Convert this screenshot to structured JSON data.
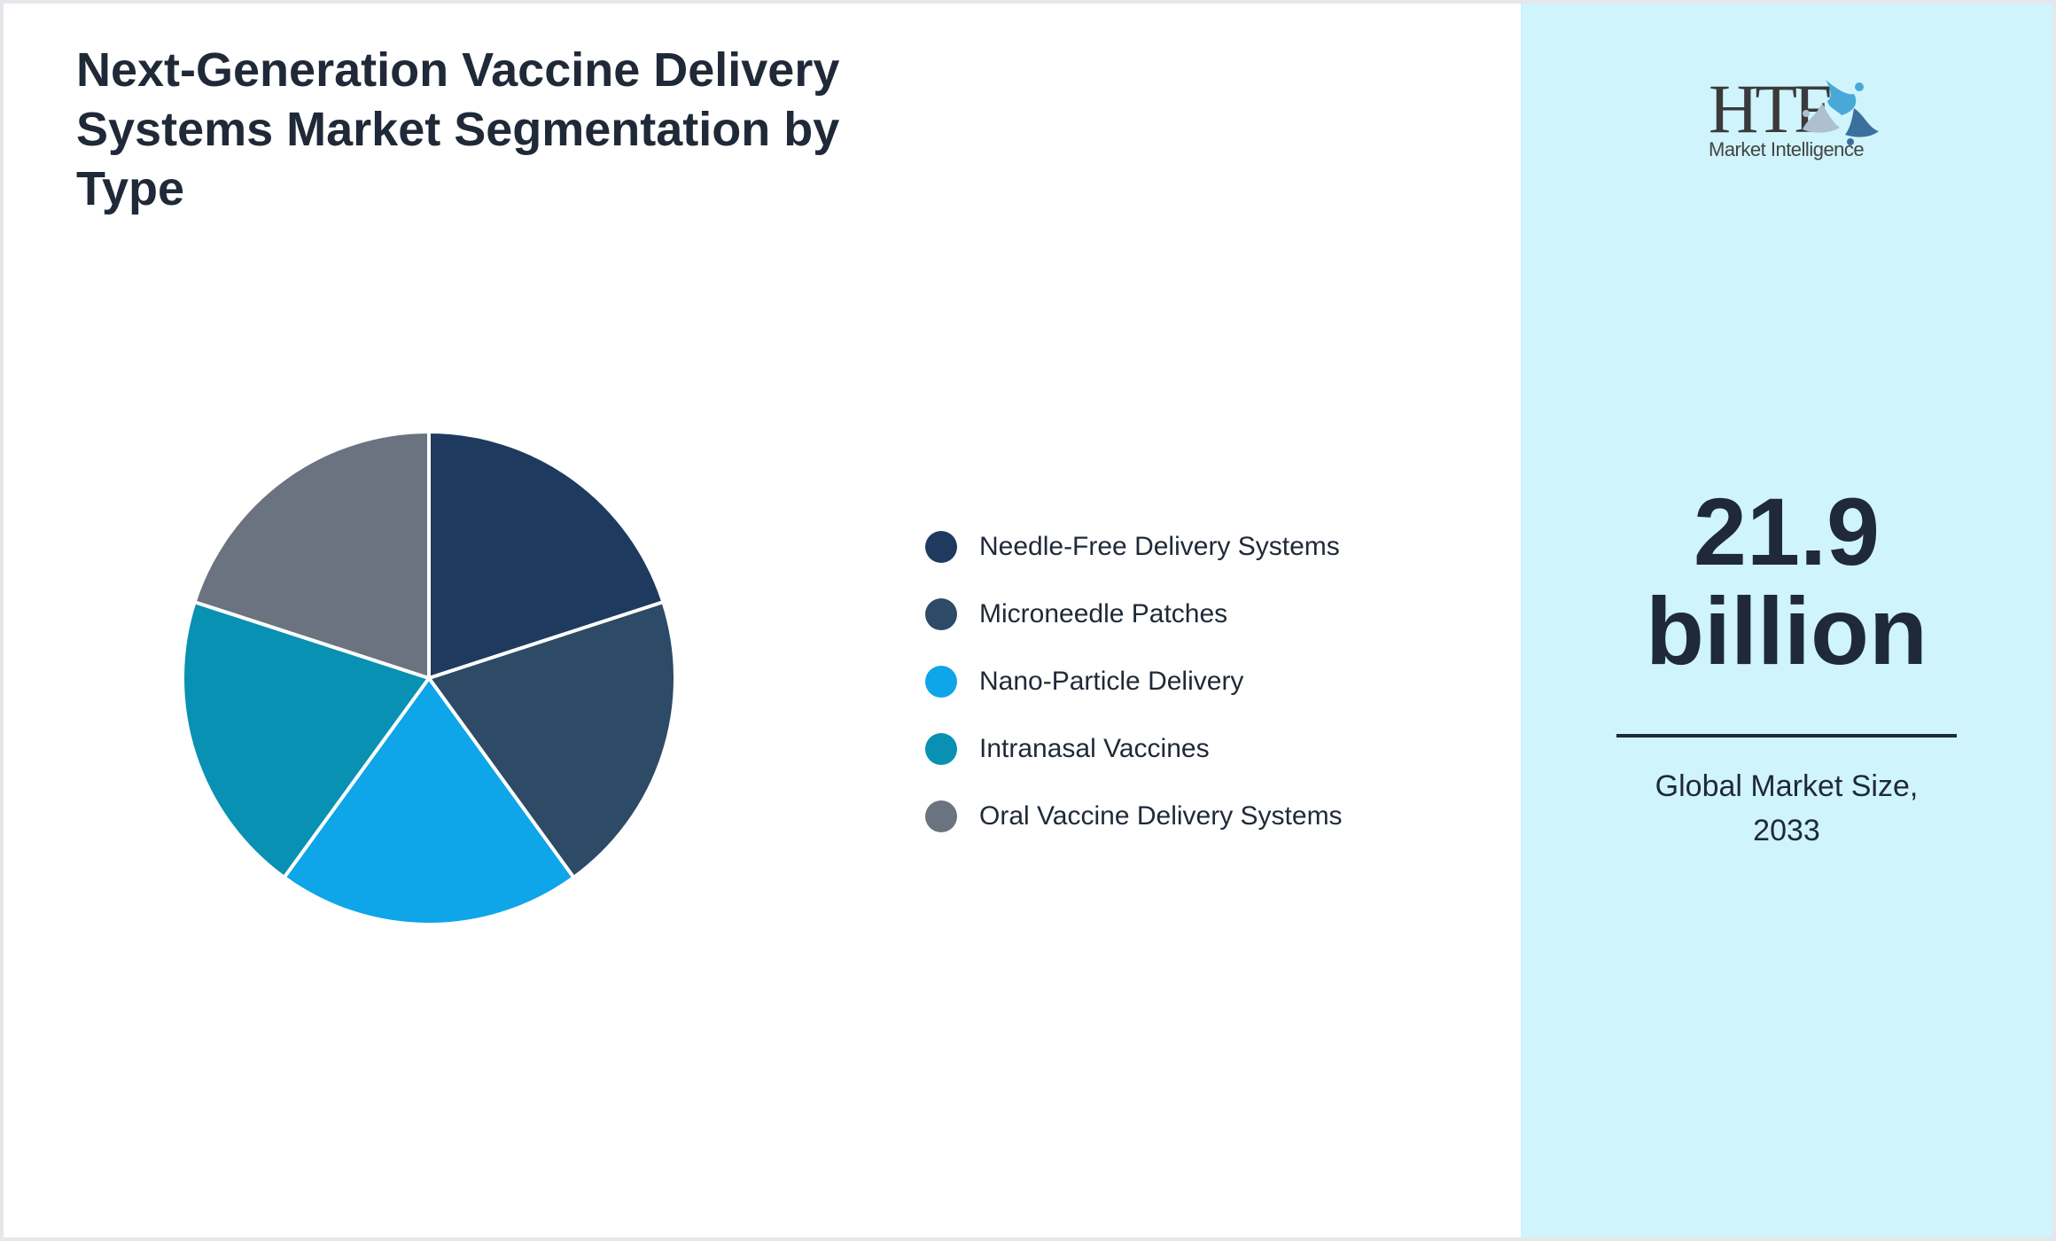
{
  "title": "Next-Generation Vaccine Delivery Systems Market Segmentation by Type",
  "logo": {
    "main_text": "HTF",
    "sub_text": "Market Intelligence"
  },
  "stat": {
    "value": "21.9",
    "unit": "billion",
    "caption_line1": "Global Market Size,",
    "caption_line2": "2033"
  },
  "legend": [
    {
      "label": "Needle-Free Delivery Systems",
      "color": "#1e3a5f"
    },
    {
      "label": "Microneedle Patches",
      "color": "#2d4a66"
    },
    {
      "label": "Nano-Particle Delivery",
      "color": "#0ea5e9"
    },
    {
      "label": "Intranasal Vaccines",
      "color": "#0891b2"
    },
    {
      "label": "Oral Vaccine Delivery Systems",
      "color": "#6b7280"
    }
  ],
  "chart_data": {
    "type": "pie",
    "title": "Next-Generation Vaccine Delivery Systems Market Segmentation by Type",
    "categories": [
      "Needle-Free Delivery Systems",
      "Microneedle Patches",
      "Nano-Particle Delivery",
      "Intranasal Vaccines",
      "Oral Vaccine Delivery Systems"
    ],
    "values": [
      20,
      20,
      20,
      20,
      20
    ],
    "colors": [
      "#1e3a5f",
      "#2d4a66",
      "#0ea5e9",
      "#0891b2",
      "#6b7280"
    ],
    "start_angle": "12 o'clock, clockwise",
    "legend_position": "right",
    "data_labels": false
  }
}
